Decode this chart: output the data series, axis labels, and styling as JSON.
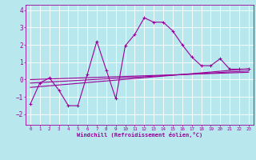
{
  "xlabel": "Windchill (Refroidissement éolien,°C)",
  "bg_color": "#b8e8ee",
  "grid_color": "#ffffff",
  "line_color": "#990099",
  "xlim": [
    -0.5,
    23.5
  ],
  "ylim": [
    -2.6,
    4.3
  ],
  "xticks": [
    0,
    1,
    2,
    3,
    4,
    5,
    6,
    7,
    8,
    9,
    10,
    11,
    12,
    13,
    14,
    15,
    16,
    17,
    18,
    19,
    20,
    21,
    22,
    23
  ],
  "yticks": [
    -2,
    -1,
    0,
    1,
    2,
    3,
    4
  ],
  "series1_x": [
    0,
    1,
    2,
    3,
    4,
    5,
    6,
    7,
    8,
    9,
    10,
    11,
    12,
    13,
    14,
    15,
    16,
    17,
    18,
    19,
    20,
    21,
    22,
    23
  ],
  "series1_y": [
    -1.4,
    -0.2,
    0.1,
    -0.6,
    -1.5,
    -1.5,
    0.3,
    2.2,
    0.55,
    -1.1,
    1.95,
    2.6,
    3.55,
    3.3,
    3.3,
    2.8,
    2.0,
    1.3,
    0.8,
    0.8,
    1.2,
    0.6,
    0.6,
    0.6
  ],
  "series2_x": [
    0,
    23
  ],
  "series2_y": [
    -0.45,
    0.62
  ],
  "series3_x": [
    0,
    23
  ],
  "series3_y": [
    -0.2,
    0.5
  ],
  "series4_x": [
    0,
    23
  ],
  "series4_y": [
    0.0,
    0.42
  ]
}
